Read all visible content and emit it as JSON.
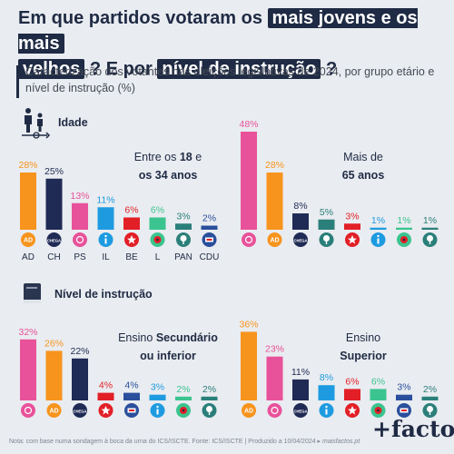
{
  "header": {
    "title_part1": "Em que partidos votaram os",
    "title_hl1": "mais jovens e os mais",
    "title_hl2": "velhos",
    "title_part2": "? E por",
    "title_hl3": "nível de instrução",
    "title_part3": "?",
    "subtitle": "Caracterização dos votantes nas eleições legislativas de 2024, por grupo etário e nível de instrução (%)"
  },
  "sections": {
    "age": "Idade",
    "education": "Nível de instrução"
  },
  "panel_labels": {
    "p1_line1": "Entre os",
    "p1_bold1": "18",
    "p1_mid": "e",
    "p1_bold2": "os 34 anos",
    "p2_line1": "Mais de",
    "p2_bold": "65 anos",
    "p3_line1": "Ensino",
    "p3_bold1": "Secundário",
    "p3_bold2": "ou inferior",
    "p4_line1": "Ensino",
    "p4_bold": "Superior"
  },
  "party_colors": {
    "AD": "#f7941d",
    "CH": "#1f2a55",
    "PS": "#e8529a",
    "IL": "#1e9be0",
    "BE": "#e21f26",
    "L": "#3bc48f",
    "PAN": "#2b7f7a",
    "CDU": "#2a4f9c"
  },
  "party_badges": {
    "AD": "AD",
    "CH": "CHEGA",
    "PS": "ps-rose-icon",
    "IL": "il-icon",
    "BE": "be-star-icon",
    "L": "livre-poppy-icon",
    "PAN": "pan-tree-icon",
    "CDU": "cdu-hammer-icon"
  },
  "chart_data": [
    {
      "type": "bar",
      "title": "Entre os 18 e os 34 anos",
      "categories": [
        "AD",
        "CH",
        "PS",
        "IL",
        "BE",
        "L",
        "PAN",
        "CDU"
      ],
      "values": [
        28,
        25,
        13,
        11,
        6,
        6,
        3,
        2
      ],
      "labels": [
        "28%",
        "25%",
        "13%",
        "11%",
        "6%",
        "6%",
        "3%",
        "2%"
      ],
      "show_category_text": true
    },
    {
      "type": "bar",
      "title": "Mais de 65 anos",
      "categories": [
        "PS",
        "AD",
        "CH",
        "PAN",
        "BE",
        "IL",
        "L",
        "PAN"
      ],
      "values": [
        48,
        28,
        8,
        5,
        3,
        1,
        1,
        1
      ],
      "labels": [
        "48%",
        "28%",
        "8%",
        "5%",
        "3%",
        "1%",
        "1%",
        "1%"
      ],
      "show_category_text": false
    },
    {
      "type": "bar",
      "title": "Ensino Secundário ou inferior",
      "categories": [
        "PS",
        "AD",
        "CH",
        "BE",
        "CDU",
        "IL",
        "L",
        "PAN"
      ],
      "values": [
        32,
        26,
        22,
        4,
        4,
        3,
        2,
        2
      ],
      "labels": [
        "32%",
        "26%",
        "22%",
        "4%",
        "4%",
        "3%",
        "2%",
        "2%"
      ],
      "show_category_text": false
    },
    {
      "type": "bar",
      "title": "Ensino Superior",
      "categories": [
        "AD",
        "PS",
        "CH",
        "IL",
        "BE",
        "L",
        "CDU",
        "PAN"
      ],
      "values": [
        36,
        23,
        11,
        8,
        6,
        6,
        3,
        2
      ],
      "labels": [
        "36%",
        "23%",
        "11%",
        "8%",
        "6%",
        "6%",
        "3%",
        "2%"
      ],
      "show_category_text": false
    }
  ],
  "footer": {
    "note": "Nota: com base numa sondagem à boca da urna do ICS/ISCTE. Fonte: ICS/ISCTE | Produzido a 10/04/2024 ▸",
    "site": "maisfactos.pt",
    "brand": "+factos"
  }
}
